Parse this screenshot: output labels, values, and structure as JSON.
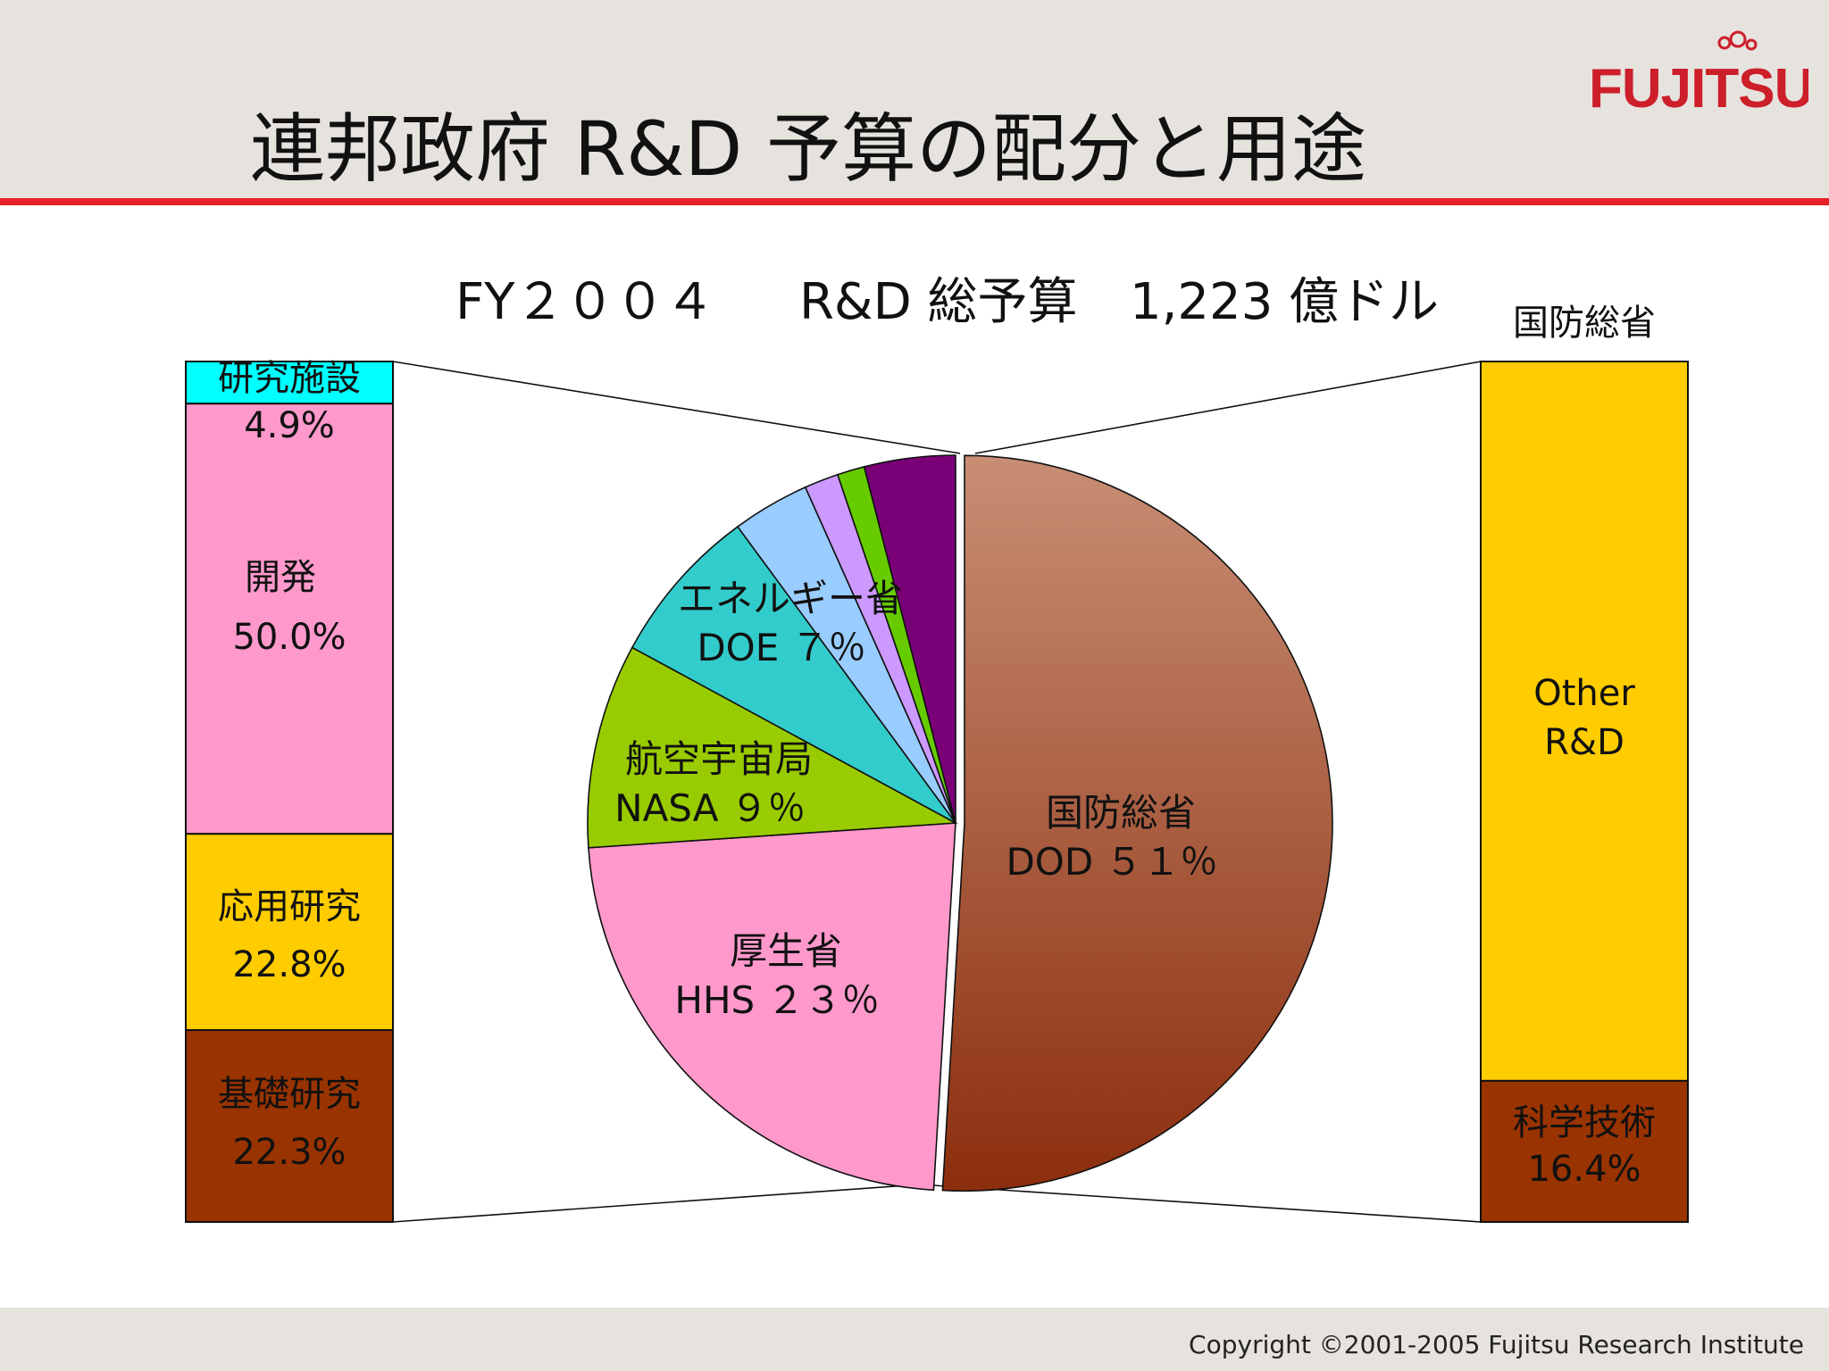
{
  "slide": {
    "title": "連邦政府 R&D 予算の配分と用途",
    "logo_text": "FUJITSU",
    "copyright": "Copyright ©2001-2005 Fujitsu Research Institute"
  },
  "colors": {
    "header_bg": "#e6e2de",
    "header_rule": "#e8202a",
    "logo_red": "#cc1f2a"
  },
  "chart_data": [
    {
      "type": "pie",
      "title_parts": [
        "FY２００４",
        "R&D 総予算",
        "1,223 億ドル"
      ],
      "slices": [
        {
          "label_jp": "国防総省",
          "label_en": "DOD",
          "pct_text": "５１％",
          "value": 51,
          "color": "#b5694a",
          "labeled": true
        },
        {
          "label_jp": "厚生省",
          "label_en": "HHS",
          "pct_text": "２３％",
          "value": 23,
          "color": "#ff99cc",
          "labeled": true
        },
        {
          "label_jp": "航空宇宙局",
          "label_en": "NASA",
          "pct_text": "９％",
          "value": 9,
          "color": "#99cc00",
          "labeled": true
        },
        {
          "label_jp": "エネルギー省",
          "label_en": "DOE",
          "pct_text": "７％",
          "value": 7,
          "color": "#33cccc",
          "labeled": true
        },
        {
          "value": 3.4,
          "color": "#99ccff",
          "labeled": false
        },
        {
          "value": 1.5,
          "color": "#cc99ff",
          "labeled": false
        },
        {
          "value": 1.2,
          "color": "#66cc00",
          "labeled": false
        },
        {
          "value": 4.0,
          "color": "#7a0077",
          "labeled": false
        }
      ]
    },
    {
      "type": "bar",
      "stacked": true,
      "segments": [
        {
          "label": "研究施設",
          "pct": "4.9%",
          "value": 4.9,
          "color": "#00ffff"
        },
        {
          "label": "開発",
          "pct": "50.0%",
          "value": 50.0,
          "color": "#ff99cc"
        },
        {
          "label": "応用研究",
          "pct": "22.8%",
          "value": 22.8,
          "color": "#ffcc00"
        },
        {
          "label": "基礎研究",
          "pct": "22.3%",
          "value": 22.3,
          "color": "#993300"
        }
      ]
    },
    {
      "type": "bar",
      "stacked": true,
      "title": "国防総省",
      "segments": [
        {
          "label": "Other R&D",
          "pct": "",
          "value": 83.6,
          "color": "#ffcc00"
        },
        {
          "label": "科学技術",
          "pct": "16.4%",
          "value": 16.4,
          "color": "#993300"
        }
      ]
    }
  ]
}
